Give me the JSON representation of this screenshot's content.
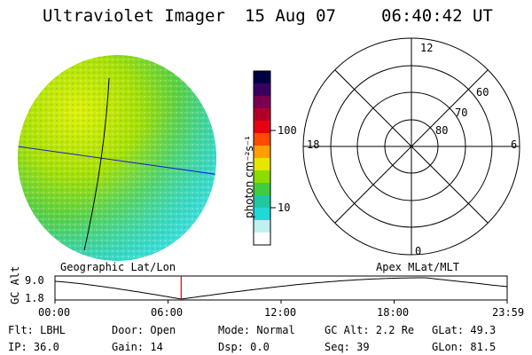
{
  "header": {
    "instrument": "Ultraviolet Imager",
    "date": "15 Aug 07",
    "time": "06:40:42 UT"
  },
  "colorbar": {
    "label": "photon cm⁻²s⁻¹",
    "ticks": [
      "100",
      "10"
    ],
    "colors": [
      "#000040",
      "#3a0060",
      "#7a0050",
      "#b40028",
      "#e80010",
      "#ff4a00",
      "#ffa000",
      "#e6e600",
      "#8cdc00",
      "#40cc40",
      "#20c8a0",
      "#20d8d8",
      "#c0f0f0",
      "#ffffff"
    ]
  },
  "left_panel": {
    "caption": "Geographic Lat/Lon"
  },
  "right_panel": {
    "caption": "Apex MLat/MLT",
    "mlt_labels": {
      "top": "12",
      "left": "18",
      "right": "6",
      "bottom": "0"
    },
    "lat_labels": [
      "60",
      "70",
      "80"
    ]
  },
  "timeline": {
    "ylabel": "GC Alt",
    "y_ticks": [
      "9.0",
      "1.8"
    ],
    "x_ticks": [
      "00:00",
      "06:00",
      "12:00",
      "18:00",
      "23:59"
    ],
    "current_time_fraction": 0.279
  },
  "info": {
    "flt": "Flt: LBHL",
    "ip": "IP: 36.0",
    "door": "Door: Open",
    "gain": "Gain: 14",
    "mode": "Mode: Normal",
    "dsp": "Dsp:    0.0",
    "gcalt": "GC Alt: 2.2 Re",
    "seq": "Seq: 39",
    "glat": "GLat:  49.3",
    "glon": "GLon:  81.5"
  }
}
